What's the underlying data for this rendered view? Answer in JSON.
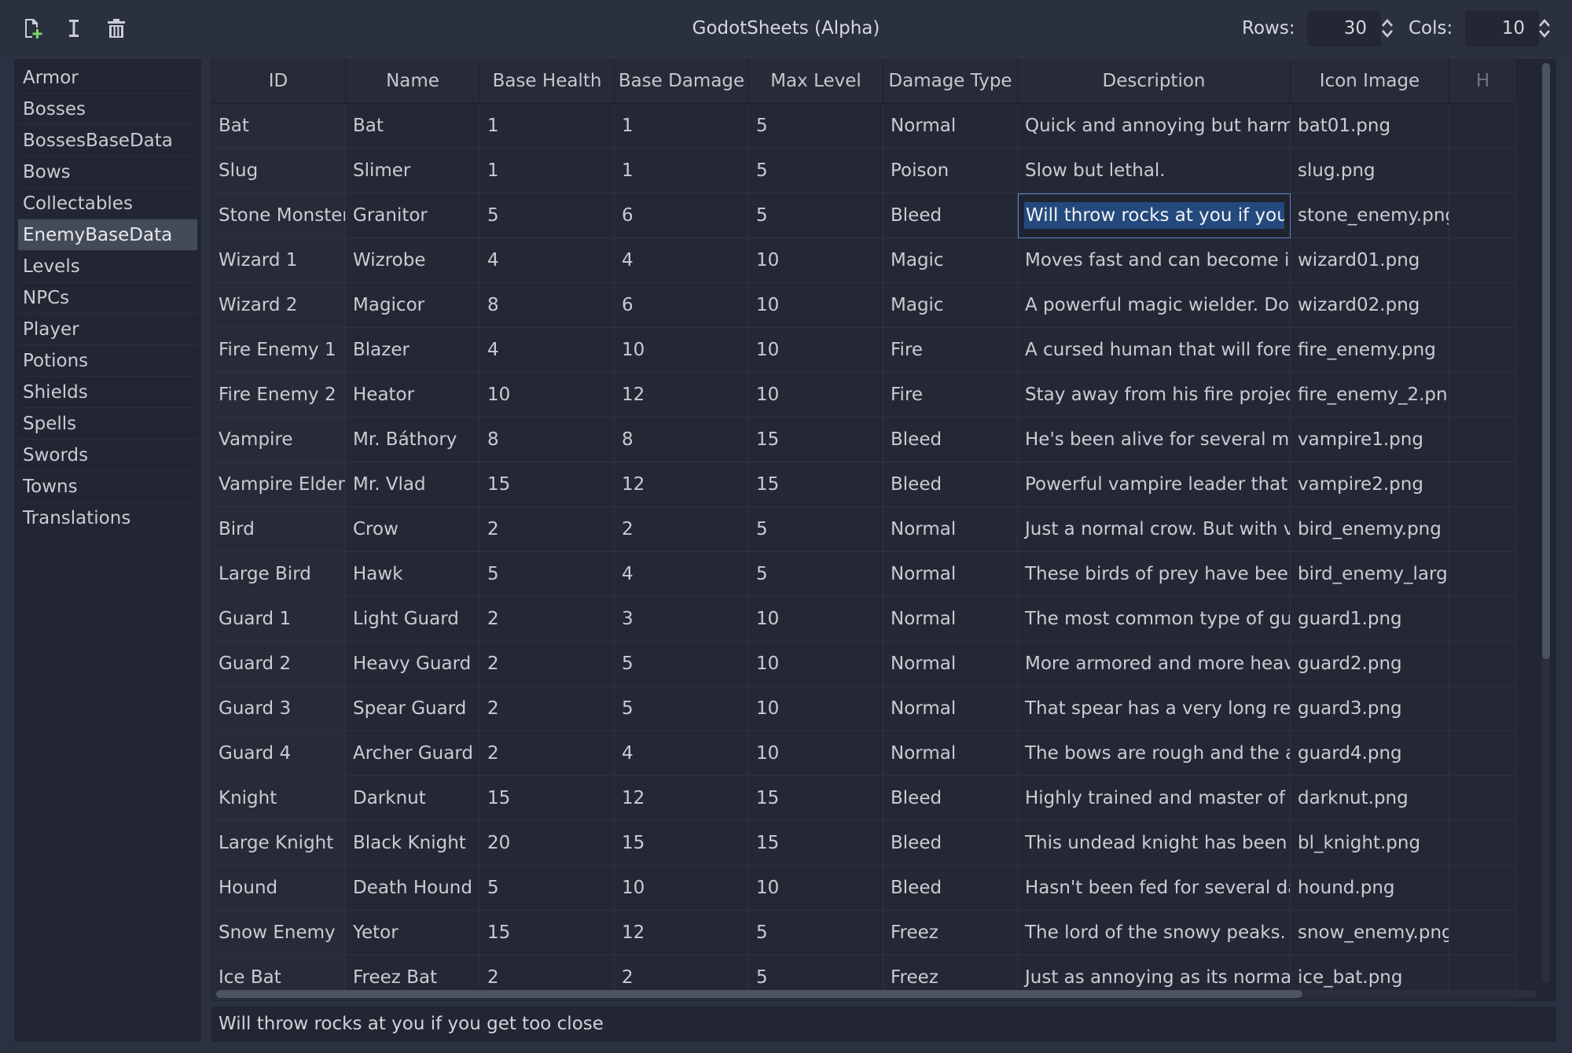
{
  "app": {
    "title": "GodotSheets (Alpha)"
  },
  "toolbar": {
    "icons": [
      "new-file-icon",
      "rename-icon",
      "delete-icon"
    ],
    "rows_label": "Rows:",
    "rows_value": "30",
    "cols_label": "Cols:",
    "cols_value": "10"
  },
  "sidebar": {
    "items": [
      {
        "label": "Armor"
      },
      {
        "label": "Bosses"
      },
      {
        "label": "BossesBaseData"
      },
      {
        "label": "Bows"
      },
      {
        "label": "Collectables"
      },
      {
        "label": "EnemyBaseData",
        "selected": true
      },
      {
        "label": "Levels"
      },
      {
        "label": "NPCs"
      },
      {
        "label": "Player"
      },
      {
        "label": "Potions"
      },
      {
        "label": "Shields"
      },
      {
        "label": "Spells"
      },
      {
        "label": "Swords"
      },
      {
        "label": "Towns"
      },
      {
        "label": "Translations"
      }
    ]
  },
  "table": {
    "columns": [
      "ID",
      "Name",
      "Base Health",
      "Base Damage",
      "Max Level",
      "Damage Type",
      "Description",
      "Icon Image",
      "H"
    ],
    "selected": {
      "row": 2,
      "col": 6
    },
    "rows": [
      [
        "Bat",
        "Bat",
        "1",
        "1",
        "5",
        "Normal",
        "Quick and annoying but harmle",
        "bat01.png",
        ""
      ],
      [
        "Slug",
        "Slimer",
        "1",
        "1",
        "5",
        "Poison",
        "Slow but lethal.",
        "slug.png",
        ""
      ],
      [
        "Stone Monster",
        "Granitor",
        "5",
        "6",
        "5",
        "Bleed",
        "Will throw rocks at you if you ge",
        "stone_enemy.png",
        ""
      ],
      [
        "Wizard 1",
        "Wizrobe",
        "4",
        "4",
        "10",
        "Magic",
        "Moves fast and can become invi",
        "wizard01.png",
        ""
      ],
      [
        "Wizard 2",
        "Magicor",
        "8",
        "6",
        "10",
        "Magic",
        "A powerful magic wielder. Don't",
        "wizard02.png",
        ""
      ],
      [
        "Fire Enemy 1",
        "Blazer",
        "4",
        "10",
        "10",
        "Fire",
        "A cursed human that will foreve",
        "fire_enemy.png",
        ""
      ],
      [
        "Fire Enemy 2",
        "Heator",
        "10",
        "12",
        "10",
        "Fire",
        "Stay away from his fire projectil",
        "fire_enemy_2.png",
        ""
      ],
      [
        "Vampire",
        "Mr. Báthory",
        "8",
        "8",
        "15",
        "Bleed",
        "He's been alive for several mille",
        "vampire1.png",
        ""
      ],
      [
        "Vampire Elder",
        "Mr. Vlad",
        "15",
        "12",
        "15",
        "Bleed",
        "Powerful vampire leader that wi",
        "vampire2.png",
        ""
      ],
      [
        "Bird",
        "Crow",
        "2",
        "2",
        "5",
        "Normal",
        "Just a normal crow. But with ver",
        "bird_enemy.png",
        ""
      ],
      [
        "Large Bird",
        "Hawk",
        "5",
        "4",
        "5",
        "Normal",
        "These birds of prey have been t",
        "bird_enemy_large",
        ""
      ],
      [
        "Guard 1",
        "Light Guard",
        "2",
        "3",
        "10",
        "Normal",
        "The most common type of guar",
        "guard1.png",
        ""
      ],
      [
        "Guard 2",
        "Heavy Guard",
        "2",
        "5",
        "10",
        "Normal",
        "More armored and more heavil",
        "guard2.png",
        ""
      ],
      [
        "Guard 3",
        "Spear Guard",
        "2",
        "5",
        "10",
        "Normal",
        "That spear has a very long reac",
        "guard3.png",
        ""
      ],
      [
        "Guard 4",
        "Archer Guard",
        "2",
        "4",
        "10",
        "Normal",
        "The bows are rough and the arr",
        "guard4.png",
        ""
      ],
      [
        "Knight",
        "Darknut",
        "15",
        "12",
        "15",
        "Bleed",
        "Highly trained and master of th",
        "darknut.png",
        ""
      ],
      [
        "Large Knight",
        "Black Knight",
        "20",
        "15",
        "15",
        "Bleed",
        "This undead knight has been ar",
        "bl_knight.png",
        ""
      ],
      [
        "Hound",
        "Death Hound",
        "5",
        "10",
        "10",
        "Bleed",
        "Hasn't been fed for several days",
        "hound.png",
        ""
      ],
      [
        "Snow Enemy",
        "Yetor",
        "15",
        "12",
        "5",
        "Freez",
        "The lord of the snowy peaks. Do",
        "snow_enemy.png",
        ""
      ],
      [
        "Ice Bat",
        "Freez Bat",
        "2",
        "2",
        "5",
        "Freez",
        "Just as annoying as its normal c",
        "ice_bat.png",
        ""
      ]
    ]
  },
  "editor": {
    "text": "Will throw rocks at you if you get too close"
  },
  "colors": {
    "background": "#2b3140",
    "panel": "#212632",
    "selection_border": "#5a8ad6",
    "selection_fill": "#24497c",
    "sidebar_selected": "#434a58"
  }
}
